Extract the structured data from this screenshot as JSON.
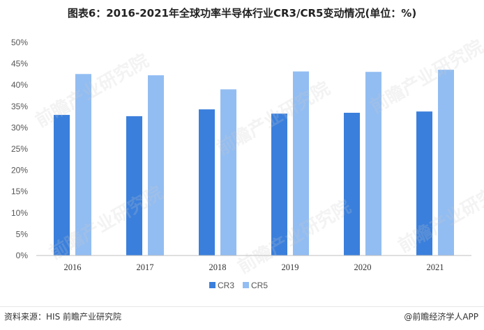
{
  "title": "图表6：2016-2021年全球功率半导体行业CR3/CR5变动情况(单位：%)",
  "footer": {
    "source": "资料来源：HIS 前瞻产业研究院",
    "brand": "@前瞻经济学人APP"
  },
  "watermark": "前瞻产业研究院",
  "colors": {
    "CR3": "#3a7fdc",
    "CR5": "#92bdf2"
  },
  "chart_data": {
    "type": "bar",
    "categories": [
      "2016",
      "2017",
      "2018",
      "2019",
      "2020",
      "2021"
    ],
    "series": [
      {
        "name": "CR3",
        "values": [
          33.0,
          32.7,
          34.3,
          33.3,
          33.5,
          33.8
        ]
      },
      {
        "name": "CR5",
        "values": [
          42.6,
          42.3,
          39.0,
          43.2,
          43.1,
          43.6
        ]
      }
    ],
    "ylim": [
      0,
      50
    ],
    "yticks": [
      "0%",
      "5%",
      "10%",
      "15%",
      "20%",
      "25%",
      "30%",
      "35%",
      "40%",
      "45%",
      "50%"
    ],
    "ytick_values": [
      0,
      5,
      10,
      15,
      20,
      25,
      30,
      35,
      40,
      45,
      50
    ],
    "legend": "bottom",
    "grid": false
  }
}
